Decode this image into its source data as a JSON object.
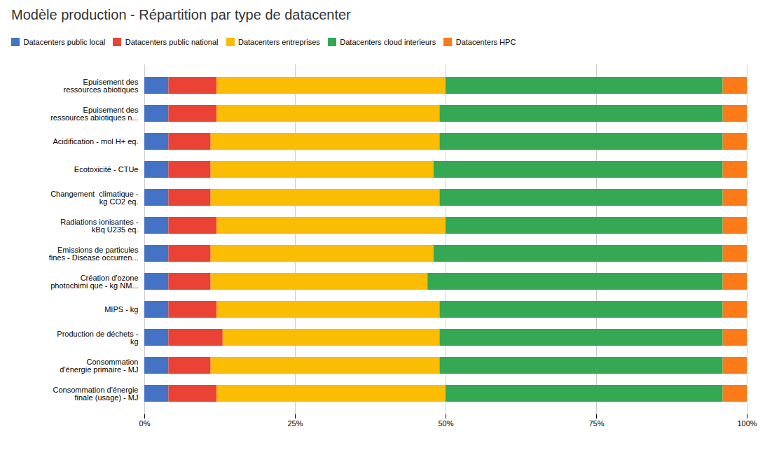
{
  "chart_data": {
    "type": "bar",
    "orientation": "horizontal",
    "stacked": true,
    "title": "Modèle production - Répartition par type de datacenter",
    "categories": [
      "Epuisement des\nressources abiotiques",
      "Epuisement des\nressources abiotiques n...",
      "Acidification - mol H+ eq.",
      "Ecotoxicité - CTUe",
      "Changement  climatique -\nkg CO2 eq.",
      "Radiations ionisantes -\nkBq U235 eq.",
      "Emissions de particules\nfines - Disease occurren...",
      "Création d'ozone\nphotochimi que - kg NM...",
      "MIPS - kg",
      "Production de déchets -\nkg",
      "Consommation\nd'énergie primaire - MJ",
      "Consommation d'énergie\nfinale (usage) - MJ"
    ],
    "series": [
      {
        "name": "Datacenters public local",
        "color": "#4472C4",
        "values": [
          4,
          4,
          4,
          4,
          4,
          4,
          4,
          4,
          4,
          4,
          4,
          4
        ]
      },
      {
        "name": "Datacenters public national",
        "color": "#EA4335",
        "values": [
          8,
          8,
          7,
          7,
          7,
          8,
          7,
          7,
          8,
          9,
          7,
          8
        ]
      },
      {
        "name": "Datacenters entreprises",
        "color": "#FBBC04",
        "values": [
          38,
          37,
          38,
          37,
          38,
          38,
          37,
          36,
          37,
          36,
          38,
          38
        ]
      },
      {
        "name": "Datacenters cloud interieurs",
        "color": "#34A853",
        "values": [
          46,
          47,
          47,
          48,
          47,
          46,
          48,
          49,
          47,
          47,
          47,
          46
        ]
      },
      {
        "name": "Datacenters HPC",
        "color": "#FA7B17",
        "values": [
          4,
          4,
          4,
          4,
          4,
          4,
          4,
          4,
          4,
          4,
          4,
          4
        ]
      }
    ],
    "xlim": [
      0,
      100
    ],
    "xticks": [
      {
        "value": 0,
        "label": "0%"
      },
      {
        "value": 25,
        "label": "25%"
      },
      {
        "value": 50,
        "label": "50%"
      },
      {
        "value": 75,
        "label": "75%"
      },
      {
        "value": 100,
        "label": "100%"
      }
    ],
    "grid": true,
    "legend": "upper left"
  }
}
